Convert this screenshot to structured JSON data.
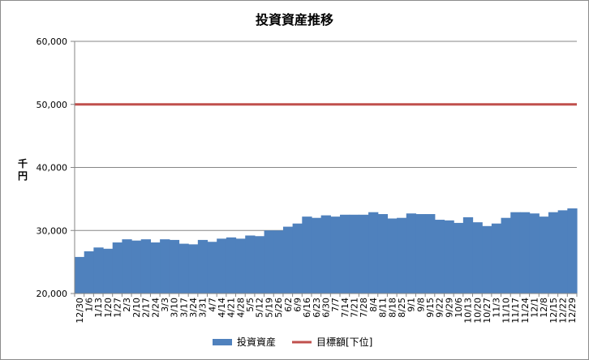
{
  "chart_data": {
    "type": "area",
    "title": "投資資産推移",
    "ylabel": "千円",
    "xlabel": "",
    "ylim": [
      20000,
      60000
    ],
    "yticks": [
      20000,
      30000,
      40000,
      50000,
      60000
    ],
    "ytick_labels": [
      "20,000",
      "30,000",
      "40,000",
      "50,000",
      "60,000"
    ],
    "grid": "horizontal",
    "legend_position": "bottom",
    "x": [
      "12/30",
      "1/6",
      "1/13",
      "1/20",
      "1/27",
      "2/3",
      "2/10",
      "2/17",
      "2/24",
      "3/3",
      "3/10",
      "3/17",
      "3/24",
      "3/31",
      "4/7",
      "4/14",
      "4/21",
      "4/28",
      "5/5",
      "5/12",
      "5/19",
      "5/26",
      "6/2",
      "6/9",
      "6/16",
      "6/23",
      "6/30",
      "7/7",
      "7/14",
      "7/21",
      "7/28",
      "8/4",
      "8/11",
      "8/18",
      "8/25",
      "9/1",
      "9/8",
      "9/15",
      "9/22",
      "9/29",
      "10/6",
      "10/13",
      "10/20",
      "10/27",
      "11/3",
      "11/10",
      "11/17",
      "11/24",
      "12/1",
      "12/8",
      "12/15",
      "12/22",
      "12/29"
    ],
    "series": [
      {
        "name": "投資資産",
        "kind": "area",
        "color": "#4f81bd",
        "values": [
          25800,
          26700,
          27300,
          27100,
          28100,
          28600,
          28400,
          28600,
          28100,
          28600,
          28500,
          27900,
          27800,
          28500,
          28200,
          28700,
          28900,
          28700,
          29200,
          29100,
          30000,
          30000,
          30600,
          31100,
          32200,
          32000,
          32400,
          32200,
          32500,
          32500,
          32500,
          32900,
          32600,
          31900,
          32000,
          32700,
          32600,
          32600,
          31700,
          31600,
          31200,
          32100,
          31300,
          30700,
          31100,
          32000,
          32900,
          32900,
          32700,
          32200,
          32900,
          33200,
          33500
        ]
      },
      {
        "name": "目標額[下位]",
        "kind": "line",
        "color": "#c0504d",
        "values": [
          50000,
          50000,
          50000,
          50000,
          50000,
          50000,
          50000,
          50000,
          50000,
          50000,
          50000,
          50000,
          50000,
          50000,
          50000,
          50000,
          50000,
          50000,
          50000,
          50000,
          50000,
          50000,
          50000,
          50000,
          50000,
          50000,
          50000,
          50000,
          50000,
          50000,
          50000,
          50000,
          50000,
          50000,
          50000,
          50000,
          50000,
          50000,
          50000,
          50000,
          50000,
          50000,
          50000,
          50000,
          50000,
          50000,
          50000,
          50000,
          50000,
          50000,
          50000,
          50000,
          50000
        ]
      }
    ]
  }
}
